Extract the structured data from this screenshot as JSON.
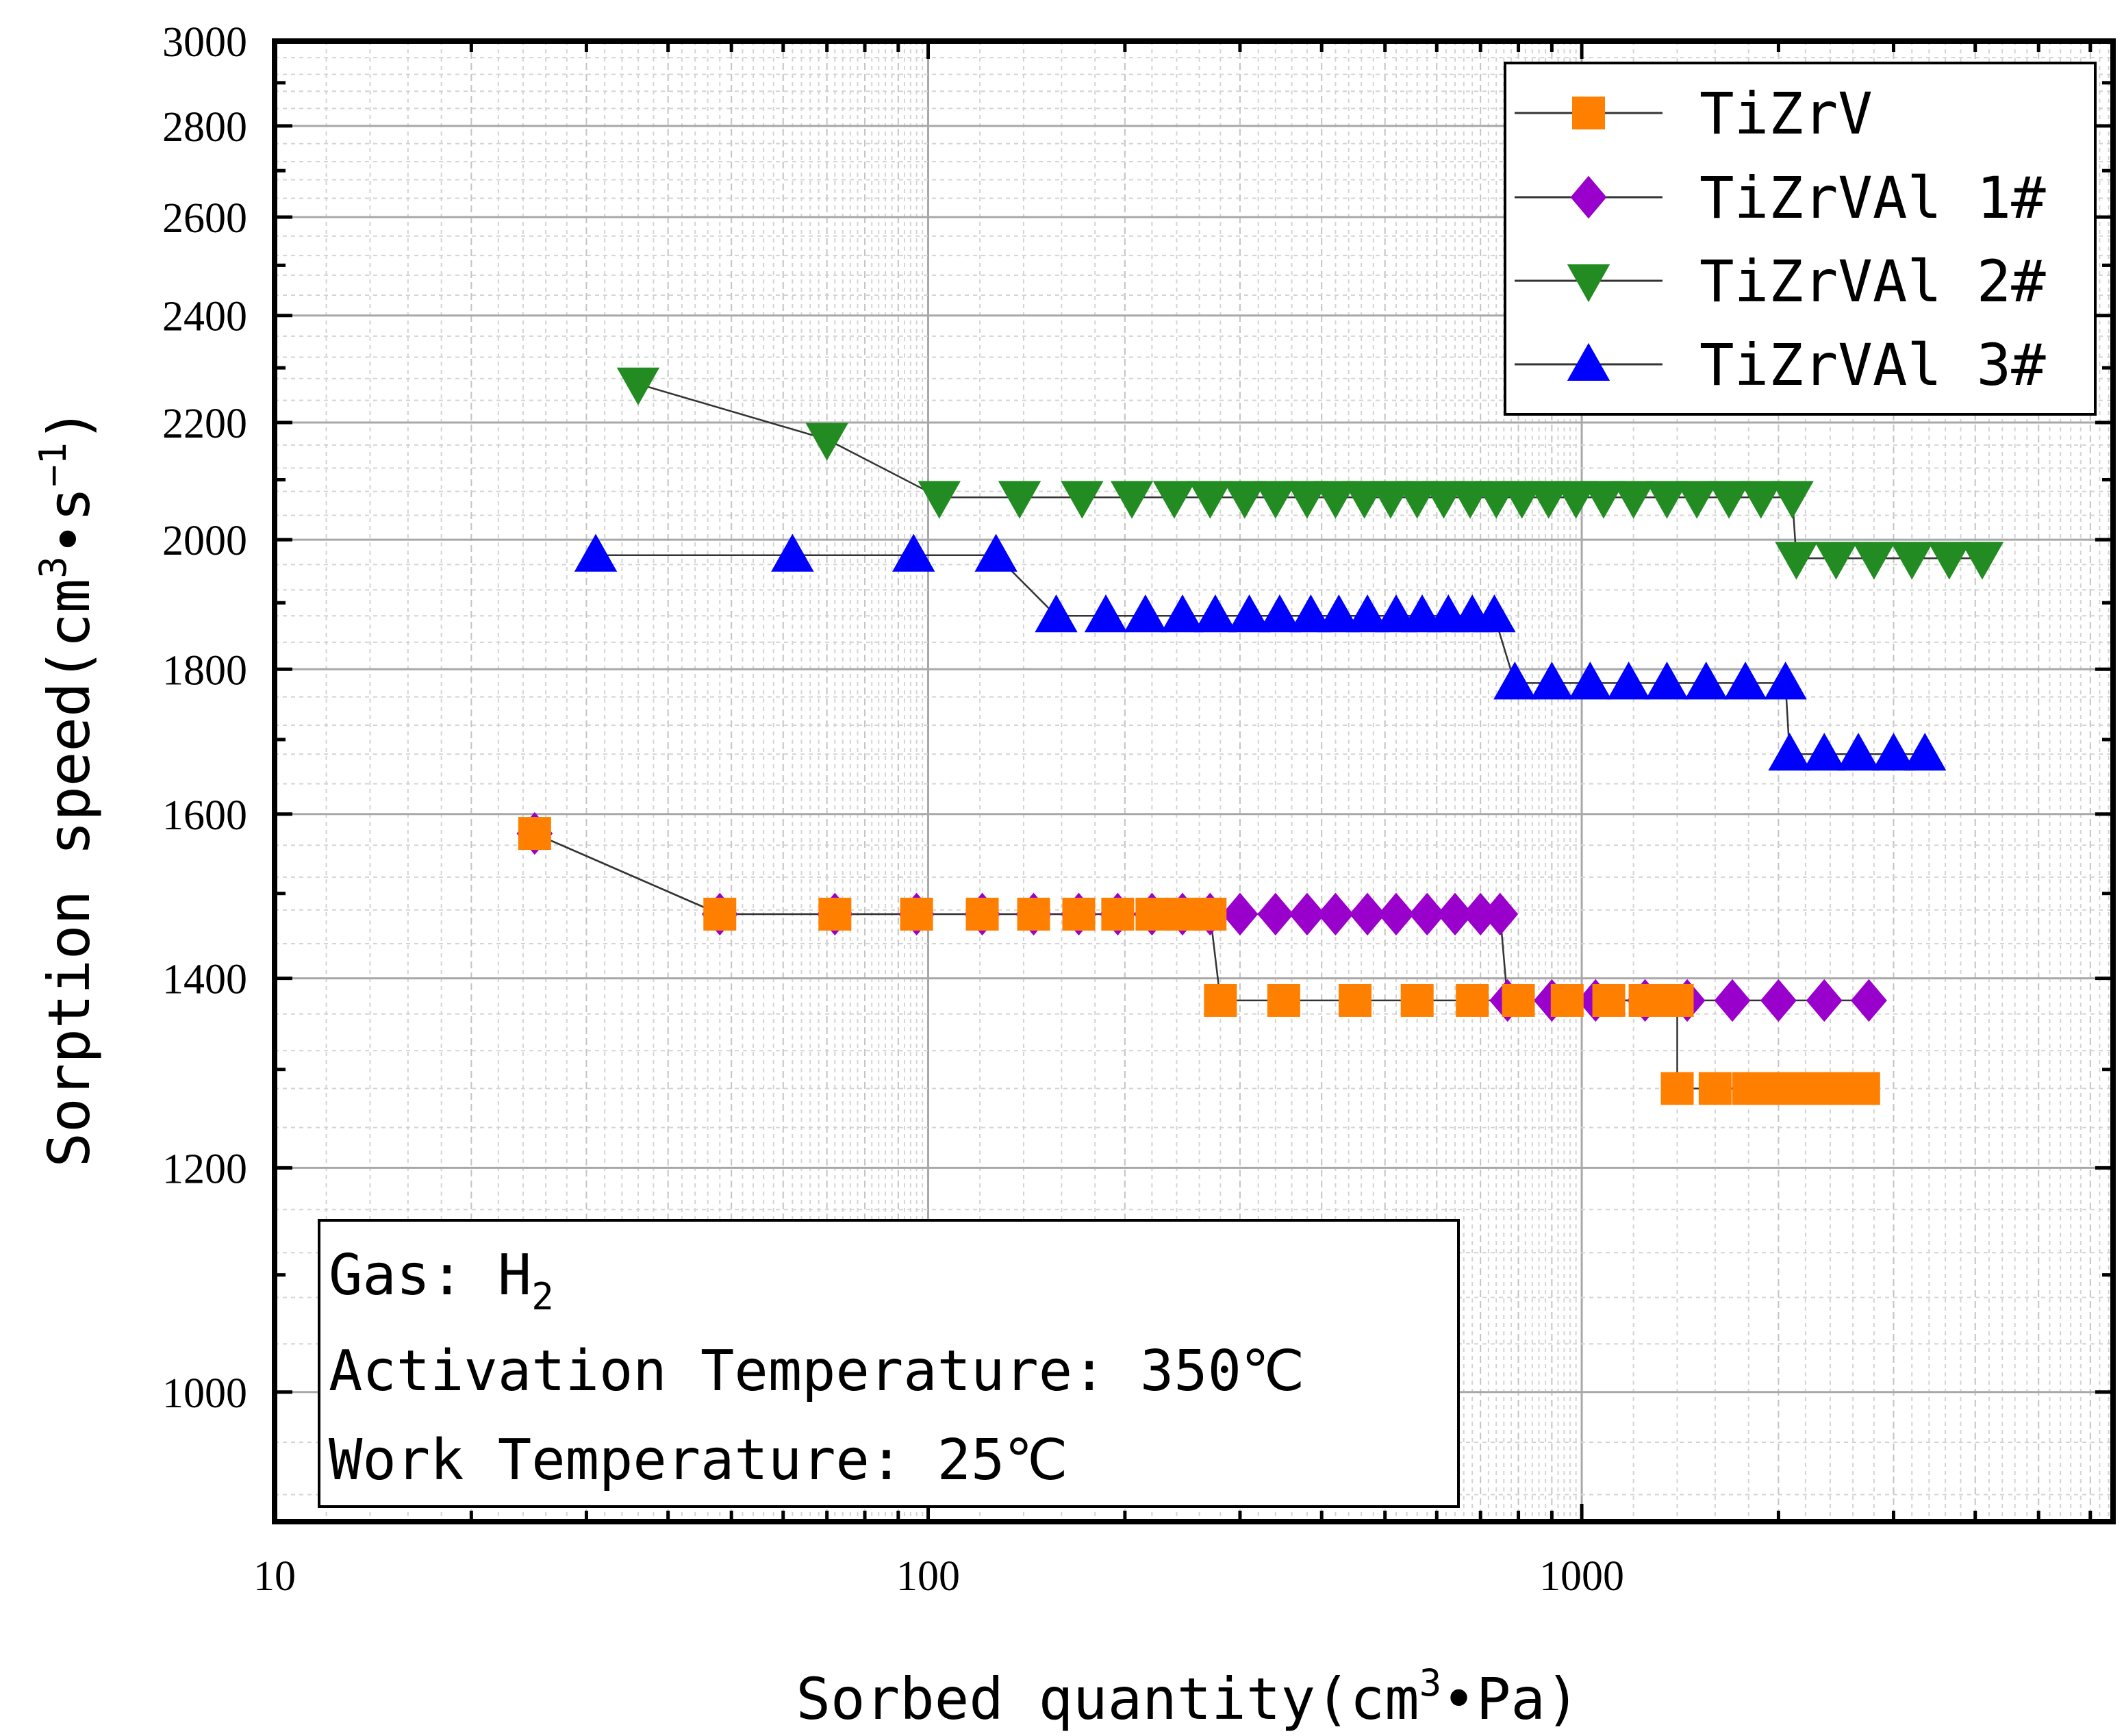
{
  "chart_data": {
    "type": "scatter",
    "x_scale": "log",
    "y_scale": "log",
    "xlim": [
      10,
      6500
    ],
    "ylim": [
      900,
      3000
    ],
    "xlabel": "Sorbed quantity(cm³•Pa)",
    "ylabel": "Sorption speed(cm³•s⁻¹)",
    "x_ticks": [
      10,
      100,
      1000
    ],
    "y_ticks": [
      1000,
      1200,
      1400,
      1600,
      1800,
      2000,
      2200,
      2400,
      2600,
      2800,
      3000
    ],
    "grid": true,
    "legend_position": "top-right",
    "series": [
      {
        "name": "TiZrV",
        "color": "#ff8000",
        "marker": "square",
        "points": [
          {
            "x": 25,
            "y": 1575
          },
          {
            "x": 48,
            "y": 1475
          },
          {
            "x": 72,
            "y": 1475
          },
          {
            "x": 96,
            "y": 1475
          },
          {
            "x": 121,
            "y": 1475
          },
          {
            "x": 145,
            "y": 1475
          },
          {
            "x": 170,
            "y": 1475
          },
          {
            "x": 195,
            "y": 1475
          },
          {
            "x": 220,
            "y": 1475
          },
          {
            "x": 245,
            "y": 1475
          },
          {
            "x": 270,
            "y": 1475
          },
          {
            "x": 280,
            "y": 1375
          },
          {
            "x": 350,
            "y": 1375
          },
          {
            "x": 450,
            "y": 1375
          },
          {
            "x": 560,
            "y": 1375
          },
          {
            "x": 680,
            "y": 1375
          },
          {
            "x": 800,
            "y": 1375
          },
          {
            "x": 950,
            "y": 1375
          },
          {
            "x": 1100,
            "y": 1375
          },
          {
            "x": 1250,
            "y": 1375
          },
          {
            "x": 1400,
            "y": 1375
          },
          {
            "x": 1400,
            "y": 1280
          },
          {
            "x": 1600,
            "y": 1280
          },
          {
            "x": 1800,
            "y": 1280
          },
          {
            "x": 2000,
            "y": 1280
          },
          {
            "x": 2200,
            "y": 1280
          },
          {
            "x": 2450,
            "y": 1280
          },
          {
            "x": 2700,
            "y": 1280
          }
        ]
      },
      {
        "name": "TiZrVAl 1#",
        "color": "#9900cc",
        "marker": "diamond",
        "points": [
          {
            "x": 25,
            "y": 1575
          },
          {
            "x": 48,
            "y": 1475
          },
          {
            "x": 72,
            "y": 1475
          },
          {
            "x": 96,
            "y": 1475
          },
          {
            "x": 121,
            "y": 1475
          },
          {
            "x": 145,
            "y": 1475
          },
          {
            "x": 170,
            "y": 1475
          },
          {
            "x": 195,
            "y": 1475
          },
          {
            "x": 220,
            "y": 1475
          },
          {
            "x": 245,
            "y": 1475
          },
          {
            "x": 270,
            "y": 1475
          },
          {
            "x": 300,
            "y": 1475
          },
          {
            "x": 340,
            "y": 1475
          },
          {
            "x": 380,
            "y": 1475
          },
          {
            "x": 420,
            "y": 1475
          },
          {
            "x": 470,
            "y": 1475
          },
          {
            "x": 520,
            "y": 1475
          },
          {
            "x": 580,
            "y": 1475
          },
          {
            "x": 640,
            "y": 1475
          },
          {
            "x": 700,
            "y": 1475
          },
          {
            "x": 750,
            "y": 1475
          },
          {
            "x": 770,
            "y": 1375
          },
          {
            "x": 900,
            "y": 1375
          },
          {
            "x": 1050,
            "y": 1375
          },
          {
            "x": 1250,
            "y": 1375
          },
          {
            "x": 1450,
            "y": 1375
          },
          {
            "x": 1700,
            "y": 1375
          },
          {
            "x": 2000,
            "y": 1375
          },
          {
            "x": 2350,
            "y": 1375
          },
          {
            "x": 2750,
            "y": 1375
          }
        ]
      },
      {
        "name": "TiZrVAl 2#",
        "color": "#228b22",
        "marker": "triangle-down",
        "points": [
          {
            "x": 36,
            "y": 2270
          },
          {
            "x": 70,
            "y": 2170
          },
          {
            "x": 104,
            "y": 2070
          },
          {
            "x": 138,
            "y": 2070
          },
          {
            "x": 172,
            "y": 2070
          },
          {
            "x": 205,
            "y": 2070
          },
          {
            "x": 238,
            "y": 2070
          },
          {
            "x": 270,
            "y": 2070
          },
          {
            "x": 305,
            "y": 2070
          },
          {
            "x": 340,
            "y": 2070
          },
          {
            "x": 380,
            "y": 2070
          },
          {
            "x": 420,
            "y": 2070
          },
          {
            "x": 465,
            "y": 2070
          },
          {
            "x": 510,
            "y": 2070
          },
          {
            "x": 560,
            "y": 2070
          },
          {
            "x": 615,
            "y": 2070
          },
          {
            "x": 675,
            "y": 2070
          },
          {
            "x": 740,
            "y": 2070
          },
          {
            "x": 810,
            "y": 2070
          },
          {
            "x": 890,
            "y": 2070
          },
          {
            "x": 980,
            "y": 2070
          },
          {
            "x": 1080,
            "y": 2070
          },
          {
            "x": 1200,
            "y": 2070
          },
          {
            "x": 1350,
            "y": 2070
          },
          {
            "x": 1500,
            "y": 2070
          },
          {
            "x": 1680,
            "y": 2070
          },
          {
            "x": 1880,
            "y": 2070
          },
          {
            "x": 2100,
            "y": 2070
          },
          {
            "x": 2130,
            "y": 1970
          },
          {
            "x": 2450,
            "y": 1970
          },
          {
            "x": 2800,
            "y": 1970
          },
          {
            "x": 3200,
            "y": 1970
          },
          {
            "x": 3650,
            "y": 1970
          },
          {
            "x": 4100,
            "y": 1970
          }
        ]
      },
      {
        "name": "TiZrVAl 3#",
        "color": "#0000ff",
        "marker": "triangle-up",
        "points": [
          {
            "x": 31,
            "y": 1975
          },
          {
            "x": 62,
            "y": 1975
          },
          {
            "x": 95,
            "y": 1975
          },
          {
            "x": 127,
            "y": 1975
          },
          {
            "x": 157,
            "y": 1880
          },
          {
            "x": 187,
            "y": 1880
          },
          {
            "x": 215,
            "y": 1880
          },
          {
            "x": 245,
            "y": 1880
          },
          {
            "x": 275,
            "y": 1880
          },
          {
            "x": 310,
            "y": 1880
          },
          {
            "x": 345,
            "y": 1880
          },
          {
            "x": 385,
            "y": 1880
          },
          {
            "x": 425,
            "y": 1880
          },
          {
            "x": 470,
            "y": 1880
          },
          {
            "x": 520,
            "y": 1880
          },
          {
            "x": 570,
            "y": 1880
          },
          {
            "x": 625,
            "y": 1880
          },
          {
            "x": 680,
            "y": 1880
          },
          {
            "x": 735,
            "y": 1880
          },
          {
            "x": 790,
            "y": 1780
          },
          {
            "x": 900,
            "y": 1780
          },
          {
            "x": 1030,
            "y": 1780
          },
          {
            "x": 1180,
            "y": 1780
          },
          {
            "x": 1350,
            "y": 1780
          },
          {
            "x": 1550,
            "y": 1780
          },
          {
            "x": 1780,
            "y": 1780
          },
          {
            "x": 2050,
            "y": 1780
          },
          {
            "x": 2080,
            "y": 1680
          },
          {
            "x": 2350,
            "y": 1680
          },
          {
            "x": 2650,
            "y": 1680
          },
          {
            "x": 3000,
            "y": 1680
          },
          {
            "x": 3350,
            "y": 1680
          }
        ]
      }
    ],
    "annotation_lines": [
      "Gas: H",
      "2",
      "Activation Temperature: 350℃",
      "Work Temperature: 25℃"
    ]
  },
  "labels": {
    "y_axis_prefix": "Sorption speed(cm",
    "y_axis_sup1": "3",
    "y_axis_mid": "•s",
    "y_axis_sup2": "−1",
    "y_axis_suffix": ")",
    "x_axis_prefix": "Sorbed quantity(cm",
    "x_axis_sup": "3",
    "x_axis_suffix": "•Pa)"
  }
}
